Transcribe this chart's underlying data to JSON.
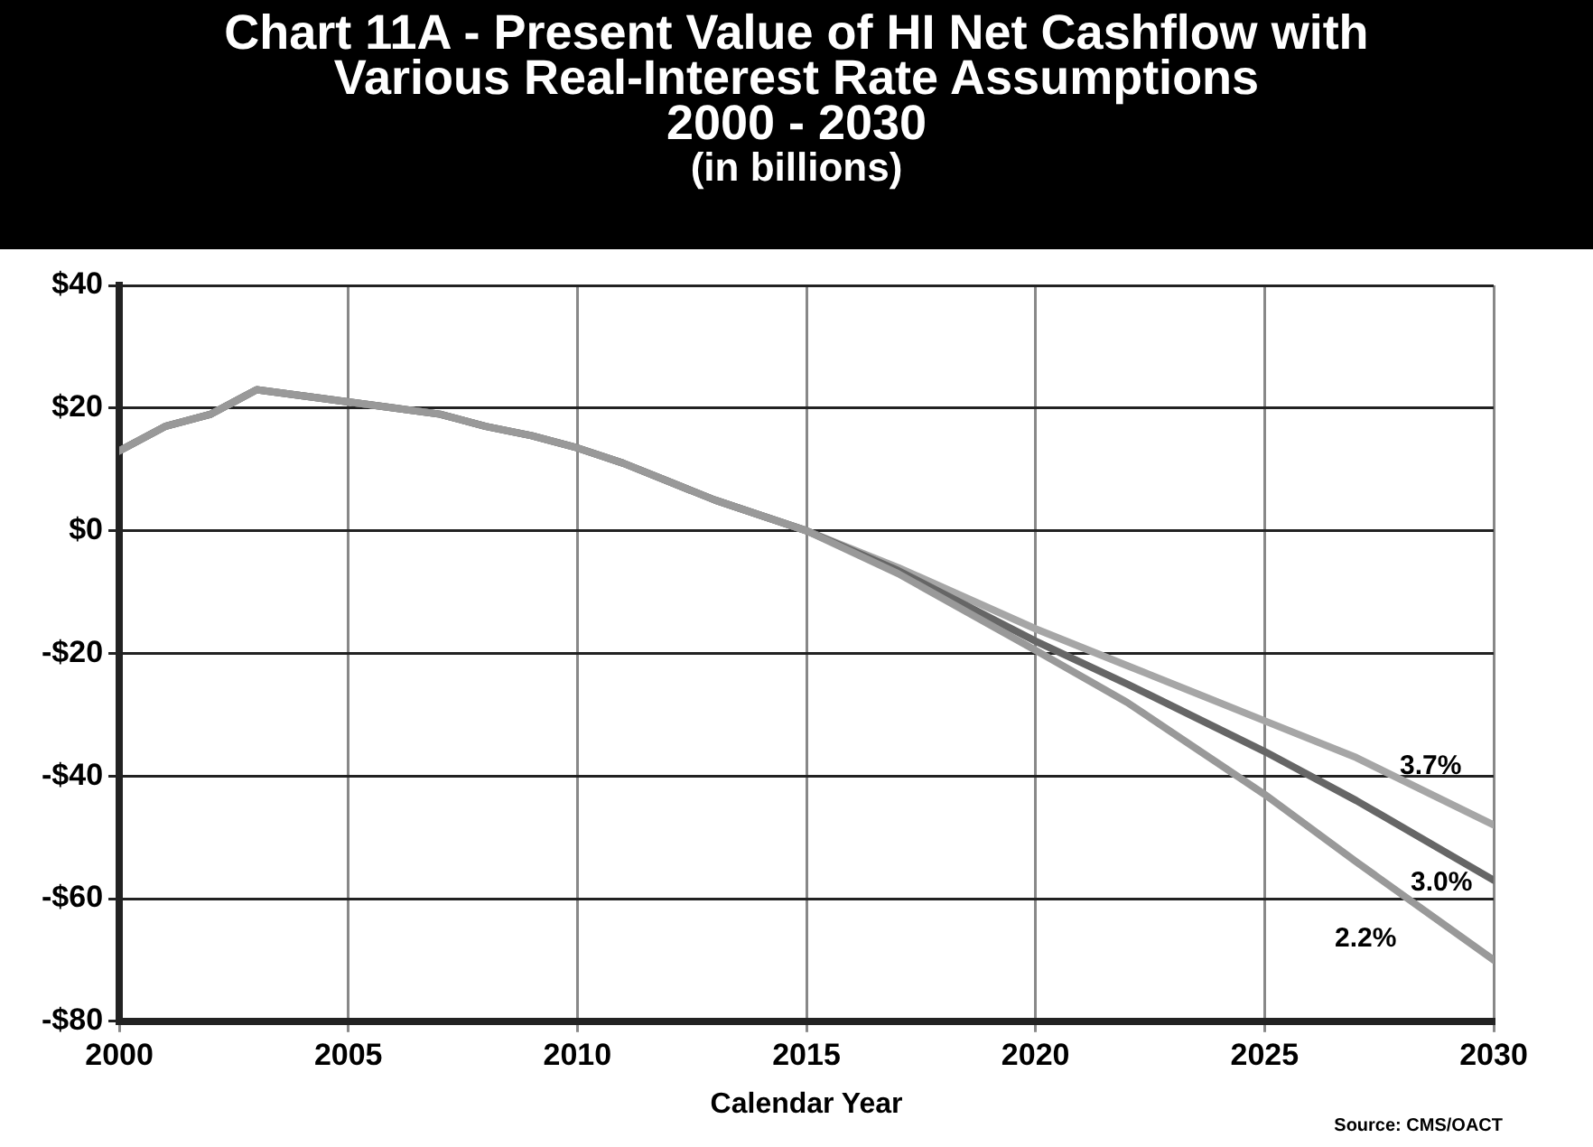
{
  "chart_data": {
    "type": "line",
    "title": "Chart 11A - Present Value of HI Net Cashflow with\nVarious Real-Interest Rate Assumptions\n2000 - 2030",
    "subtitle": "(in billions)",
    "xlabel": "Calendar Year",
    "x": [
      2000,
      2001,
      2002,
      2003,
      2004,
      2005,
      2006,
      2007,
      2008,
      2009,
      2010,
      2011,
      2012,
      2013,
      2014,
      2015,
      2017,
      2020,
      2022,
      2025,
      2027,
      2030
    ],
    "series": [
      {
        "name": "3.7%",
        "color": "#a6a6a6",
        "values": [
          13,
          17,
          19,
          23,
          22,
          21,
          20,
          19,
          17,
          15.5,
          13.5,
          11,
          8,
          5,
          2.5,
          0,
          -6,
          -16,
          -22,
          -31,
          -37,
          -48
        ]
      },
      {
        "name": "3.0%",
        "color": "#666666",
        "values": [
          13,
          17,
          19,
          23,
          22,
          21,
          20,
          19,
          17,
          15.5,
          13.5,
          11,
          8,
          5,
          2.5,
          0,
          -6.5,
          -18,
          -25,
          -36,
          -44,
          -57
        ]
      },
      {
        "name": "2.2%",
        "color": "#999999",
        "values": [
          13,
          17,
          19,
          23,
          22,
          21,
          20,
          19,
          17,
          15.5,
          13.5,
          11,
          8,
          5,
          2.5,
          0,
          -7,
          -19.5,
          -28,
          -43,
          -54,
          -70
        ]
      }
    ],
    "xlim": [
      2000,
      2030
    ],
    "xticks": [
      2000,
      2005,
      2010,
      2015,
      2020,
      2025,
      2030
    ],
    "ylim": [
      -80,
      40
    ],
    "yticks": [
      {
        "value": -80,
        "label": "-$80"
      },
      {
        "value": -60,
        "label": "-$60"
      },
      {
        "value": -40,
        "label": "-$40"
      },
      {
        "value": -20,
        "label": "-$20"
      },
      {
        "value": 0,
        "label": "$0"
      },
      {
        "value": 20,
        "label": "$20"
      },
      {
        "value": 40,
        "label": "$40"
      }
    ],
    "grid": true,
    "legend": false,
    "marker": "none",
    "line_style": "solid",
    "annotations": [
      "Source: CMS/OACT"
    ]
  }
}
